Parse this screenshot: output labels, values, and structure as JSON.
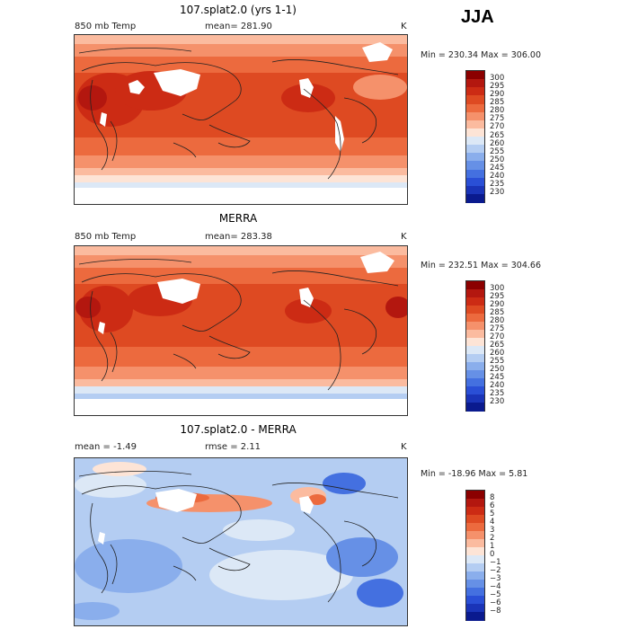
{
  "season": "JJA",
  "panels": [
    {
      "title": "107.splat2.0 (yrs 1-1)",
      "left_label": "850 mb Temp",
      "center_label": "mean= 281.90",
      "units": "K",
      "minmax": "Min = 230.34  Max = 306.00"
    },
    {
      "title": "MERRA",
      "left_label": "850 mb Temp",
      "center_label": "mean= 283.38",
      "units": "K",
      "minmax": "Min = 232.51  Max = 304.66"
    },
    {
      "title": "107.splat2.0 - MERRA",
      "left_label": "mean =   -1.49",
      "center_label": "rmse =    2.11",
      "units": "K",
      "minmax": "Min = -18.96  Max =    5.81"
    }
  ],
  "colorbars": {
    "temp": {
      "levels": [
        "300",
        "295",
        "290",
        "285",
        "280",
        "275",
        "270",
        "265",
        "260",
        "255",
        "250",
        "245",
        "240",
        "235",
        "230"
      ],
      "colors": [
        "#8b0000",
        "#b3170f",
        "#cc2b14",
        "#de4a22",
        "#ec6a3e",
        "#f5916b",
        "#fbbb9f",
        "#fde4d6",
        "#dce8f6",
        "#b4cdf2",
        "#8aaeec",
        "#6690e6",
        "#4470e0",
        "#2a4fd6",
        "#1a34b8",
        "#0a1a8e"
      ]
    },
    "diff": {
      "levels": [
        "8",
        "6",
        "5",
        "4",
        "3",
        "2",
        "1",
        "0",
        "−1",
        "−2",
        "−3",
        "−4",
        "−5",
        "−6",
        "−8"
      ],
      "colors": [
        "#8b0000",
        "#b3170f",
        "#cc2b14",
        "#de4a22",
        "#ec6a3e",
        "#f5916b",
        "#fbbb9f",
        "#fde4d6",
        "#dce8f6",
        "#b4cdf2",
        "#8aaeec",
        "#6690e6",
        "#4470e0",
        "#2a4fd6",
        "#1a34b8",
        "#0a1a8e"
      ]
    }
  }
}
